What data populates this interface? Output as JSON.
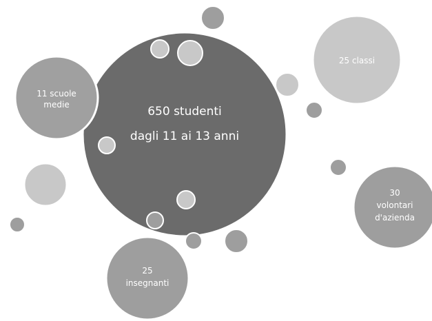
{
  "colors": {
    "background": "#ffffff",
    "dark": "#6b6b6b",
    "mid": "#9e9e9e",
    "light": "#c8c8c8",
    "label": "#ffffff",
    "stroke": "#ffffff"
  },
  "center": {
    "line1": "650 studenti",
    "line2": "dagli 11 ai 13 anni"
  },
  "scuole": {
    "line1": "11 scuole",
    "line2": "medie"
  },
  "classi": {
    "line1": "25 classi"
  },
  "volontari": {
    "line1": "30",
    "line2": "volontari",
    "line3": "d'azienda"
  },
  "insegnanti": {
    "line1": "25",
    "line2": "insegnanti"
  }
}
